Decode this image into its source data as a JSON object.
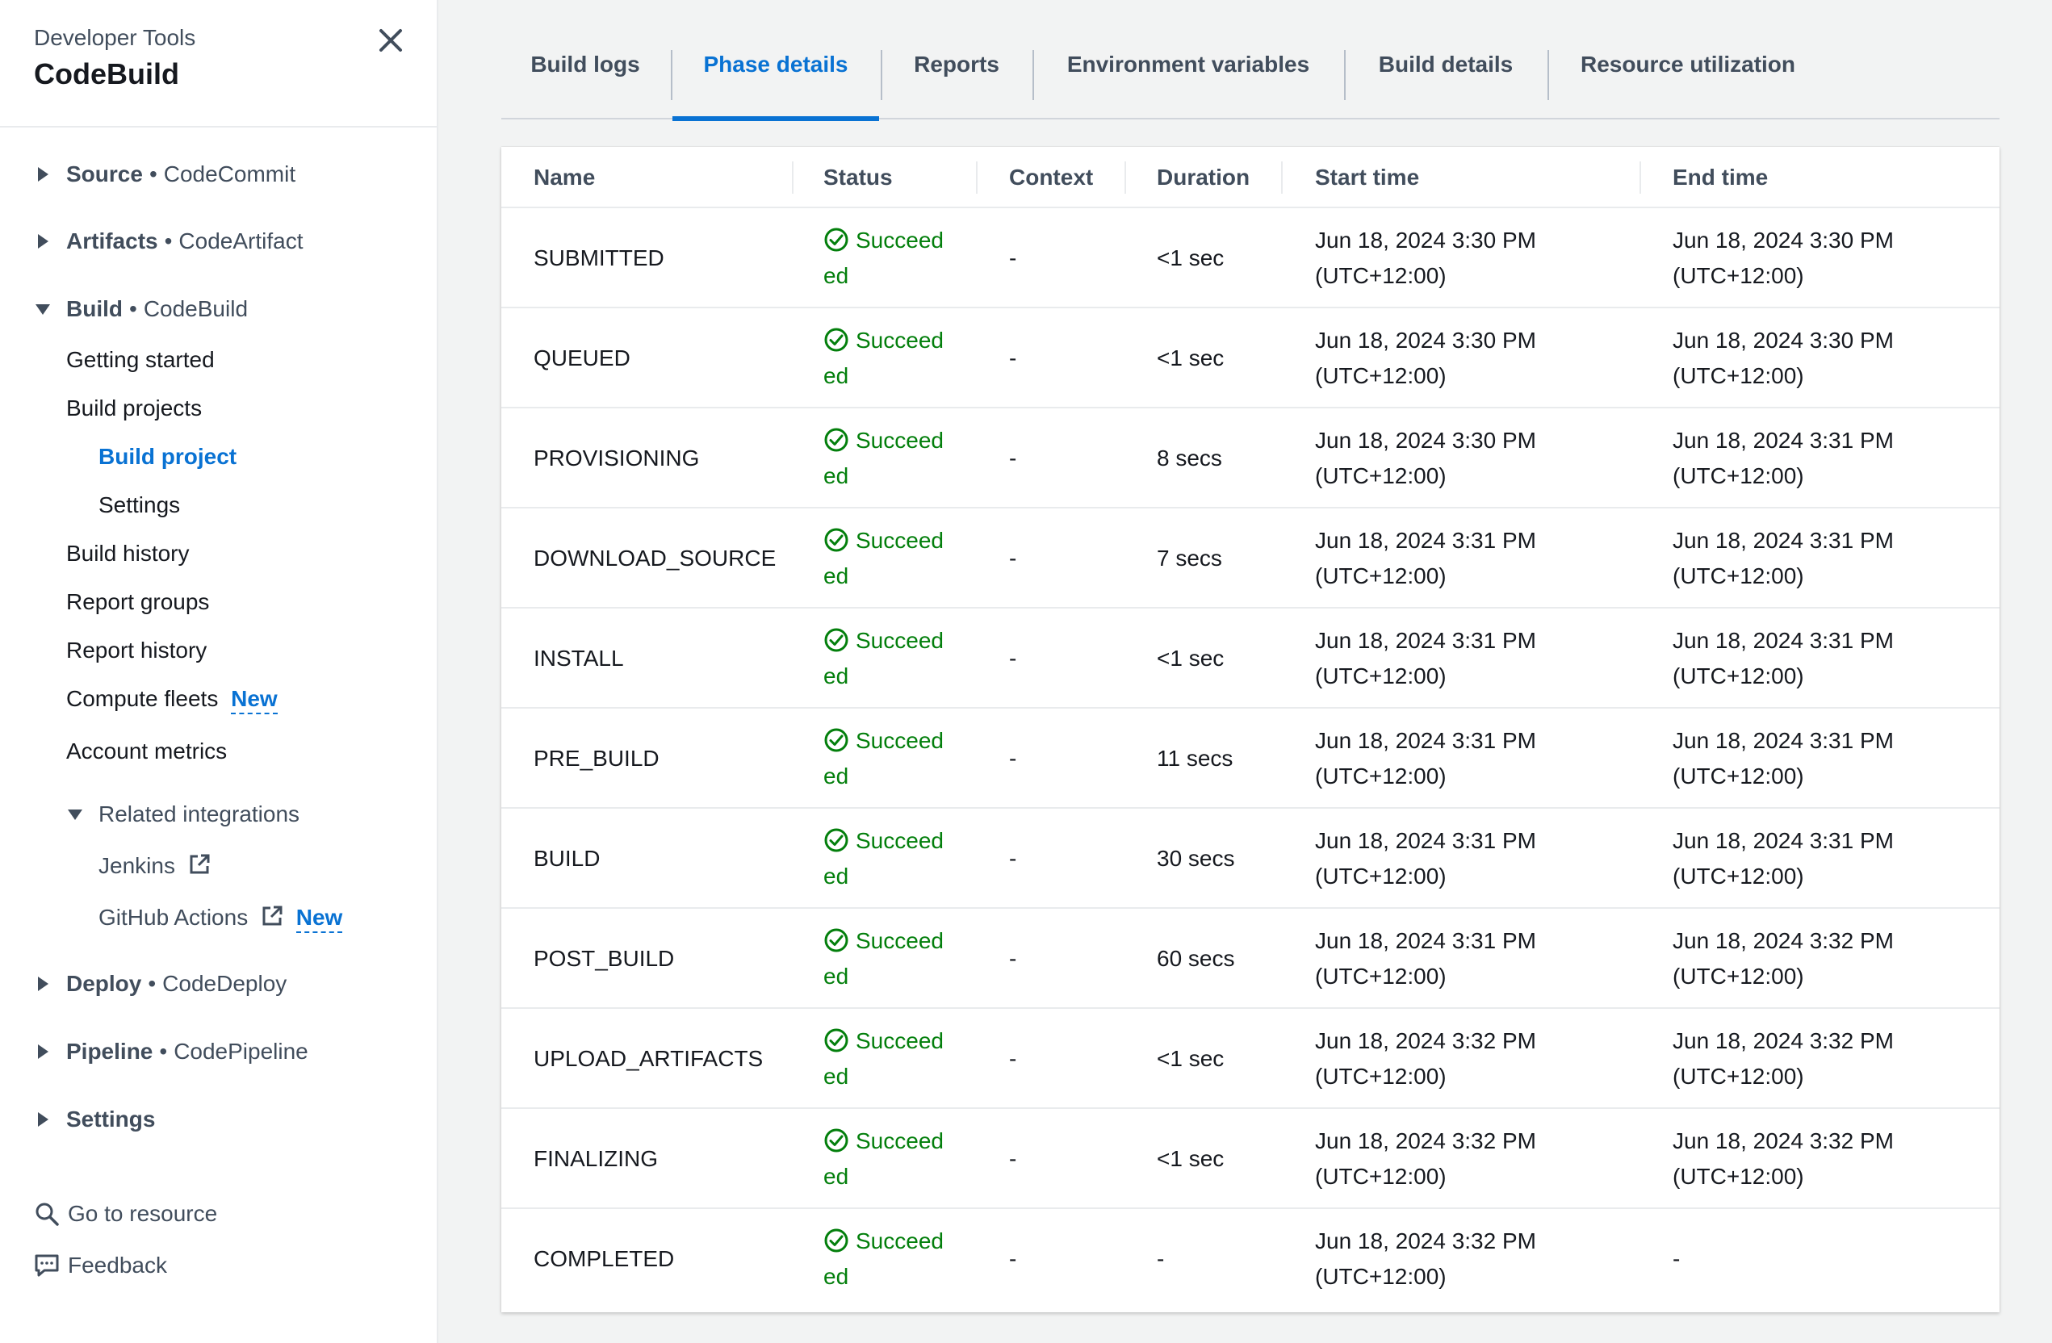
{
  "sidebar": {
    "subtitle": "Developer Tools",
    "title": "CodeBuild",
    "sections": {
      "source": {
        "name": "Source",
        "sub": "CodeCommit"
      },
      "artifacts": {
        "name": "Artifacts",
        "sub": "CodeArtifact"
      },
      "build": {
        "name": "Build",
        "sub": "CodeBuild"
      },
      "deploy": {
        "name": "Deploy",
        "sub": "CodeDeploy"
      },
      "pipeline": {
        "name": "Pipeline",
        "sub": "CodePipeline"
      },
      "settings": {
        "name": "Settings"
      }
    },
    "build_items": {
      "getting_started": "Getting started",
      "build_projects": "Build projects",
      "build_project": "Build project",
      "settings": "Settings",
      "build_history": "Build history",
      "report_groups": "Report groups",
      "report_history": "Report history",
      "compute_fleets": "Compute fleets",
      "account_metrics": "Account metrics",
      "related_integrations": "Related integrations",
      "jenkins": "Jenkins",
      "github_actions": "GitHub Actions"
    },
    "new_badge": "New",
    "go_to_resource": "Go to resource",
    "feedback": "Feedback"
  },
  "tabs": {
    "build_logs": "Build logs",
    "phase_details": "Phase details",
    "reports": "Reports",
    "environment_variables": "Environment variables",
    "build_details": "Build details",
    "resource_utilization": "Resource utilization"
  },
  "table": {
    "headers": {
      "name": "Name",
      "status": "Status",
      "context": "Context",
      "duration": "Duration",
      "start_time": "Start time",
      "end_time": "End time"
    },
    "status_label_1": "Succeed",
    "status_label_2": "ed",
    "rows": [
      {
        "name": "SUBMITTED",
        "context": "-",
        "duration": "<1 sec",
        "start": "Jun 18, 2024 3:30 PM",
        "start_tz": "(UTC+12:00)",
        "end": "Jun 18, 2024 3:30 PM",
        "end_tz": "(UTC+12:00)"
      },
      {
        "name": "QUEUED",
        "context": "-",
        "duration": "<1 sec",
        "start": "Jun 18, 2024 3:30 PM",
        "start_tz": "(UTC+12:00)",
        "end": "Jun 18, 2024 3:30 PM",
        "end_tz": "(UTC+12:00)"
      },
      {
        "name": "PROVISIONING",
        "context": "-",
        "duration": "8 secs",
        "start": "Jun 18, 2024 3:30 PM",
        "start_tz": "(UTC+12:00)",
        "end": "Jun 18, 2024 3:31 PM",
        "end_tz": "(UTC+12:00)"
      },
      {
        "name": "DOWNLOAD_SOURCE",
        "context": "-",
        "duration": "7 secs",
        "start": "Jun 18, 2024 3:31 PM",
        "start_tz": "(UTC+12:00)",
        "end": "Jun 18, 2024 3:31 PM",
        "end_tz": "(UTC+12:00)"
      },
      {
        "name": "INSTALL",
        "context": "-",
        "duration": "<1 sec",
        "start": "Jun 18, 2024 3:31 PM",
        "start_tz": "(UTC+12:00)",
        "end": "Jun 18, 2024 3:31 PM",
        "end_tz": "(UTC+12:00)"
      },
      {
        "name": "PRE_BUILD",
        "context": "-",
        "duration": "11 secs",
        "start": "Jun 18, 2024 3:31 PM",
        "start_tz": "(UTC+12:00)",
        "end": "Jun 18, 2024 3:31 PM",
        "end_tz": "(UTC+12:00)"
      },
      {
        "name": "BUILD",
        "context": "-",
        "duration": "30 secs",
        "start": "Jun 18, 2024 3:31 PM",
        "start_tz": "(UTC+12:00)",
        "end": "Jun 18, 2024 3:31 PM",
        "end_tz": "(UTC+12:00)"
      },
      {
        "name": "POST_BUILD",
        "context": "-",
        "duration": "60 secs",
        "start": "Jun 18, 2024 3:31 PM",
        "start_tz": "(UTC+12:00)",
        "end": "Jun 18, 2024 3:32 PM",
        "end_tz": "(UTC+12:00)"
      },
      {
        "name": "UPLOAD_ARTIFACTS",
        "context": "-",
        "duration": "<1 sec",
        "start": "Jun 18, 2024 3:32 PM",
        "start_tz": "(UTC+12:00)",
        "end": "Jun 18, 2024 3:32 PM",
        "end_tz": "(UTC+12:00)"
      },
      {
        "name": "FINALIZING",
        "context": "-",
        "duration": "<1 sec",
        "start": "Jun 18, 2024 3:32 PM",
        "start_tz": "(UTC+12:00)",
        "end": "Jun 18, 2024 3:32 PM",
        "end_tz": "(UTC+12:00)"
      },
      {
        "name": "COMPLETED",
        "context": "-",
        "duration": "-",
        "start": "Jun 18, 2024 3:32 PM",
        "start_tz": "(UTC+12:00)",
        "end": "-",
        "end_tz": ""
      }
    ]
  },
  "colors": {
    "accent": "#0972d3",
    "success": "#037f0c",
    "text": "#16191f",
    "muted": "#414d5c"
  },
  "icons": {
    "close": "close-icon",
    "caret_right": "caret-right-icon",
    "caret_down": "caret-down-icon",
    "external": "external-link-icon",
    "search": "search-icon",
    "feedback": "feedback-icon",
    "status_ok": "status-success-icon"
  }
}
